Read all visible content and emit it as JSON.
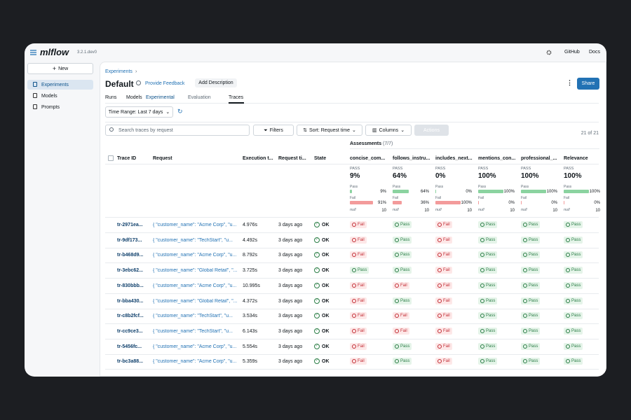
{
  "header": {
    "logo": "mlflow",
    "version": "3.2.1.dev0",
    "links": [
      "GitHub",
      "Docs"
    ]
  },
  "sidebar": {
    "new_button": "New",
    "nav": [
      "Experiments",
      "Models",
      "Prompts"
    ]
  },
  "page": {
    "breadcrumb": "Experiments",
    "title": "Default",
    "provide_feedback": "Provide Feedback",
    "add_description": "Add Description",
    "share": "Share",
    "tabs": [
      "Runs",
      "Models",
      "Evaluation",
      "Traces"
    ],
    "tab_badge": "Experimental",
    "time_range": "Time Range: Last 7 days",
    "search_placeholder": "Search traces by request",
    "filters": "Filters",
    "sort": "Sort: Request time",
    "columns": "Columns",
    "actions": "Actions",
    "count": "21 of 21"
  },
  "table": {
    "assessments_label": "Assessments",
    "assessments_count": "(7/7)",
    "columns": [
      "Trace ID",
      "Request",
      "Execution t...",
      "Request ti...",
      "State"
    ],
    "assessment_columns": [
      "concise_com...",
      "follows_instru...",
      "includes_next...",
      "mentions_con...",
      "professional_...",
      "Relevance"
    ],
    "summary_labels": {
      "pass_header": "PASS",
      "pass": "Pass",
      "fail": "Fail",
      "null": "null"
    },
    "summaries": [
      {
        "pct": "9%",
        "pass": "9%",
        "fail": "91%",
        "null": "10"
      },
      {
        "pct": "64%",
        "pass": "64%",
        "fail": "36%",
        "null": "10"
      },
      {
        "pct": "0%",
        "pass": "0%",
        "fail": "100%",
        "null": "10"
      },
      {
        "pct": "100%",
        "pass": "100%",
        "fail": "0%",
        "null": "10"
      },
      {
        "pct": "100%",
        "pass": "100%",
        "fail": "0%",
        "null": "10"
      },
      {
        "pct": "100%",
        "pass": "100%",
        "fail": "0%",
        "null": "10"
      }
    ],
    "rows": [
      {
        "id": "tr-2971ea...",
        "request": "{ \"customer_name\": \"Acme Corp\", \"u...",
        "exec": "4.976s",
        "time": "3 days ago",
        "state": "OK",
        "assessments": [
          "Fail",
          "Pass",
          "Fail",
          "Pass",
          "Pass",
          "Pass"
        ]
      },
      {
        "id": "tr-9df173...",
        "request": "{ \"customer_name\": \"TechStart\", \"u...",
        "exec": "4.492s",
        "time": "3 days ago",
        "state": "OK",
        "assessments": [
          "Fail",
          "Pass",
          "Fail",
          "Pass",
          "Pass",
          "Pass"
        ]
      },
      {
        "id": "tr-b468d9...",
        "request": "{ \"customer_name\": \"Acme Corp\", \"u...",
        "exec": "8.792s",
        "time": "3 days ago",
        "state": "OK",
        "assessments": [
          "Fail",
          "Pass",
          "Fail",
          "Pass",
          "Pass",
          "Pass"
        ]
      },
      {
        "id": "tr-3ebc62...",
        "request": "{ \"customer_name\": \"Global Retail\", \"...",
        "exec": "3.725s",
        "time": "3 days ago",
        "state": "OK",
        "assessments": [
          "Pass",
          "Pass",
          "Fail",
          "Pass",
          "Pass",
          "Pass"
        ]
      },
      {
        "id": "tr-830bbb...",
        "request": "{ \"customer_name\": \"Acme Corp\", \"u...",
        "exec": "10.995s",
        "time": "3 days ago",
        "state": "OK",
        "assessments": [
          "Fail",
          "Fail",
          "Fail",
          "Pass",
          "Pass",
          "Pass"
        ]
      },
      {
        "id": "tr-bba430...",
        "request": "{ \"customer_name\": \"Global Retail\", \"...",
        "exec": "4.372s",
        "time": "3 days ago",
        "state": "OK",
        "assessments": [
          "Fail",
          "Pass",
          "Fail",
          "Pass",
          "Pass",
          "Pass"
        ]
      },
      {
        "id": "tr-c8b2fcf...",
        "request": "{ \"customer_name\": \"TechStart\", \"u...",
        "exec": "3.534s",
        "time": "3 days ago",
        "state": "OK",
        "assessments": [
          "Fail",
          "Fail",
          "Fail",
          "Pass",
          "Pass",
          "Pass"
        ]
      },
      {
        "id": "tr-cc9ce3...",
        "request": "{ \"customer_name\": \"TechStart\", \"u...",
        "exec": "6.143s",
        "time": "3 days ago",
        "state": "OK",
        "assessments": [
          "Fail",
          "Fail",
          "Fail",
          "Pass",
          "Pass",
          "Pass"
        ]
      },
      {
        "id": "tr-5456fc...",
        "request": "{ \"customer_name\": \"Acme Corp\", \"u...",
        "exec": "5.554s",
        "time": "3 days ago",
        "state": "OK",
        "assessments": [
          "Fail",
          "Pass",
          "Fail",
          "Pass",
          "Pass",
          "Pass"
        ]
      },
      {
        "id": "tr-bc3a88...",
        "request": "{ \"customer_name\": \"Acme Corp\", \"u...",
        "exec": "5.359s",
        "time": "3 days ago",
        "state": "OK",
        "assessments": [
          "Fail",
          "Pass",
          "Fail",
          "Pass",
          "Pass",
          "Pass"
        ]
      }
    ]
  }
}
